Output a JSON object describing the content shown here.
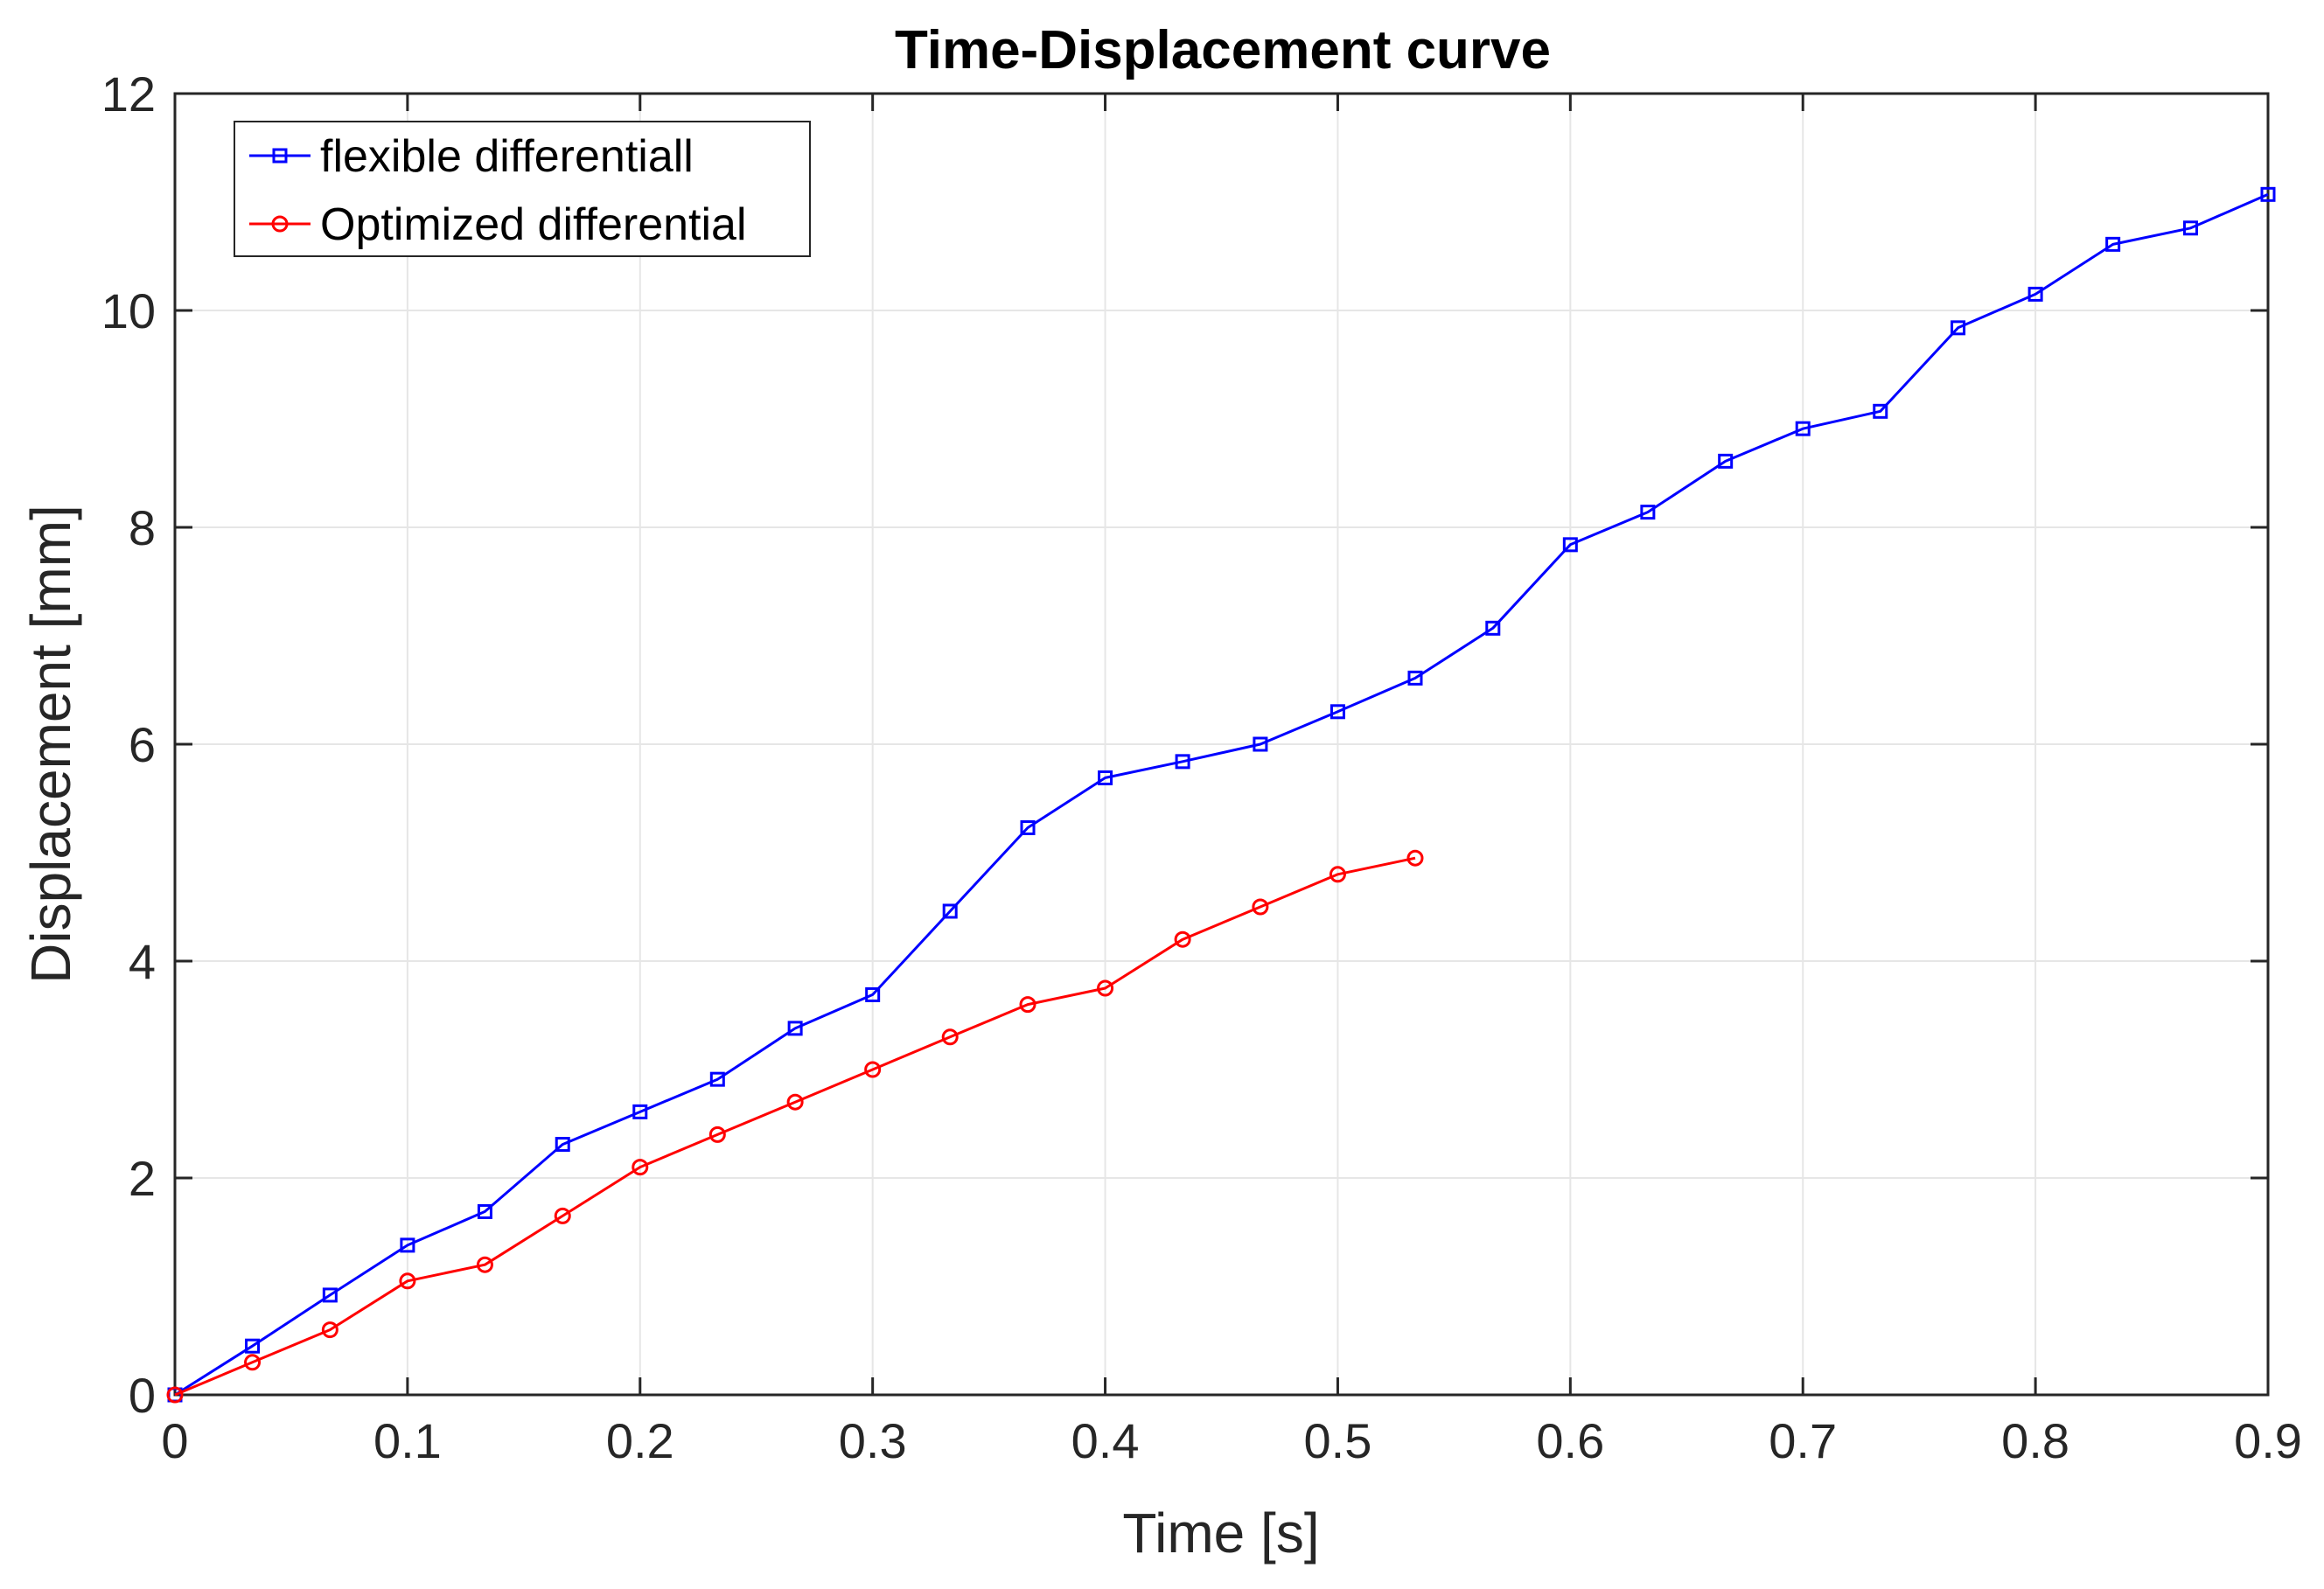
{
  "chart_data": {
    "type": "line",
    "title": "Time-Displacement curve",
    "xlabel": "Time [s]",
    "ylabel": "Displacement [mm]",
    "xlim": [
      0,
      0.9
    ],
    "ylim": [
      0,
      12
    ],
    "xticks": [
      "0",
      "0.1",
      "0.2",
      "0.3",
      "0.4",
      "0.5",
      "0.6",
      "0.7",
      "0.8",
      "0.9"
    ],
    "yticks": [
      "0",
      "2",
      "4",
      "6",
      "8",
      "10",
      "12"
    ],
    "grid": true,
    "legend_position": "top-left",
    "series": [
      {
        "name": "flexible differentiall",
        "color": "#0000ff",
        "marker": "square",
        "x": [
          0,
          0.0333,
          0.0667,
          0.1,
          0.1333,
          0.1667,
          0.2,
          0.2333,
          0.2667,
          0.3,
          0.3333,
          0.3667,
          0.4,
          0.4333,
          0.4667,
          0.5,
          0.5333,
          0.5667,
          0.6,
          0.6333,
          0.6667,
          0.7,
          0.7333,
          0.7667,
          0.8,
          0.8333,
          0.8667,
          0.9
        ],
        "y": [
          0,
          0.45,
          0.92,
          1.38,
          1.69,
          2.31,
          2.61,
          2.91,
          3.38,
          3.69,
          4.46,
          5.23,
          5.69,
          5.84,
          6.0,
          6.3,
          6.61,
          7.07,
          7.84,
          8.14,
          8.61,
          8.91,
          9.07,
          9.84,
          10.15,
          10.61,
          10.76,
          11.07
        ]
      },
      {
        "name": "Optimized differential",
        "color": "#ff0000",
        "marker": "circle",
        "x": [
          0,
          0.0333,
          0.0667,
          0.1,
          0.1333,
          0.1667,
          0.2,
          0.2333,
          0.2667,
          0.3,
          0.3333,
          0.3667,
          0.4,
          0.4333,
          0.4667,
          0.5,
          0.5333
        ],
        "y": [
          0,
          0.3,
          0.6,
          1.05,
          1.2,
          1.65,
          2.1,
          2.4,
          2.7,
          3.0,
          3.3,
          3.6,
          3.75,
          4.2,
          4.5,
          4.8,
          4.95
        ]
      }
    ]
  }
}
